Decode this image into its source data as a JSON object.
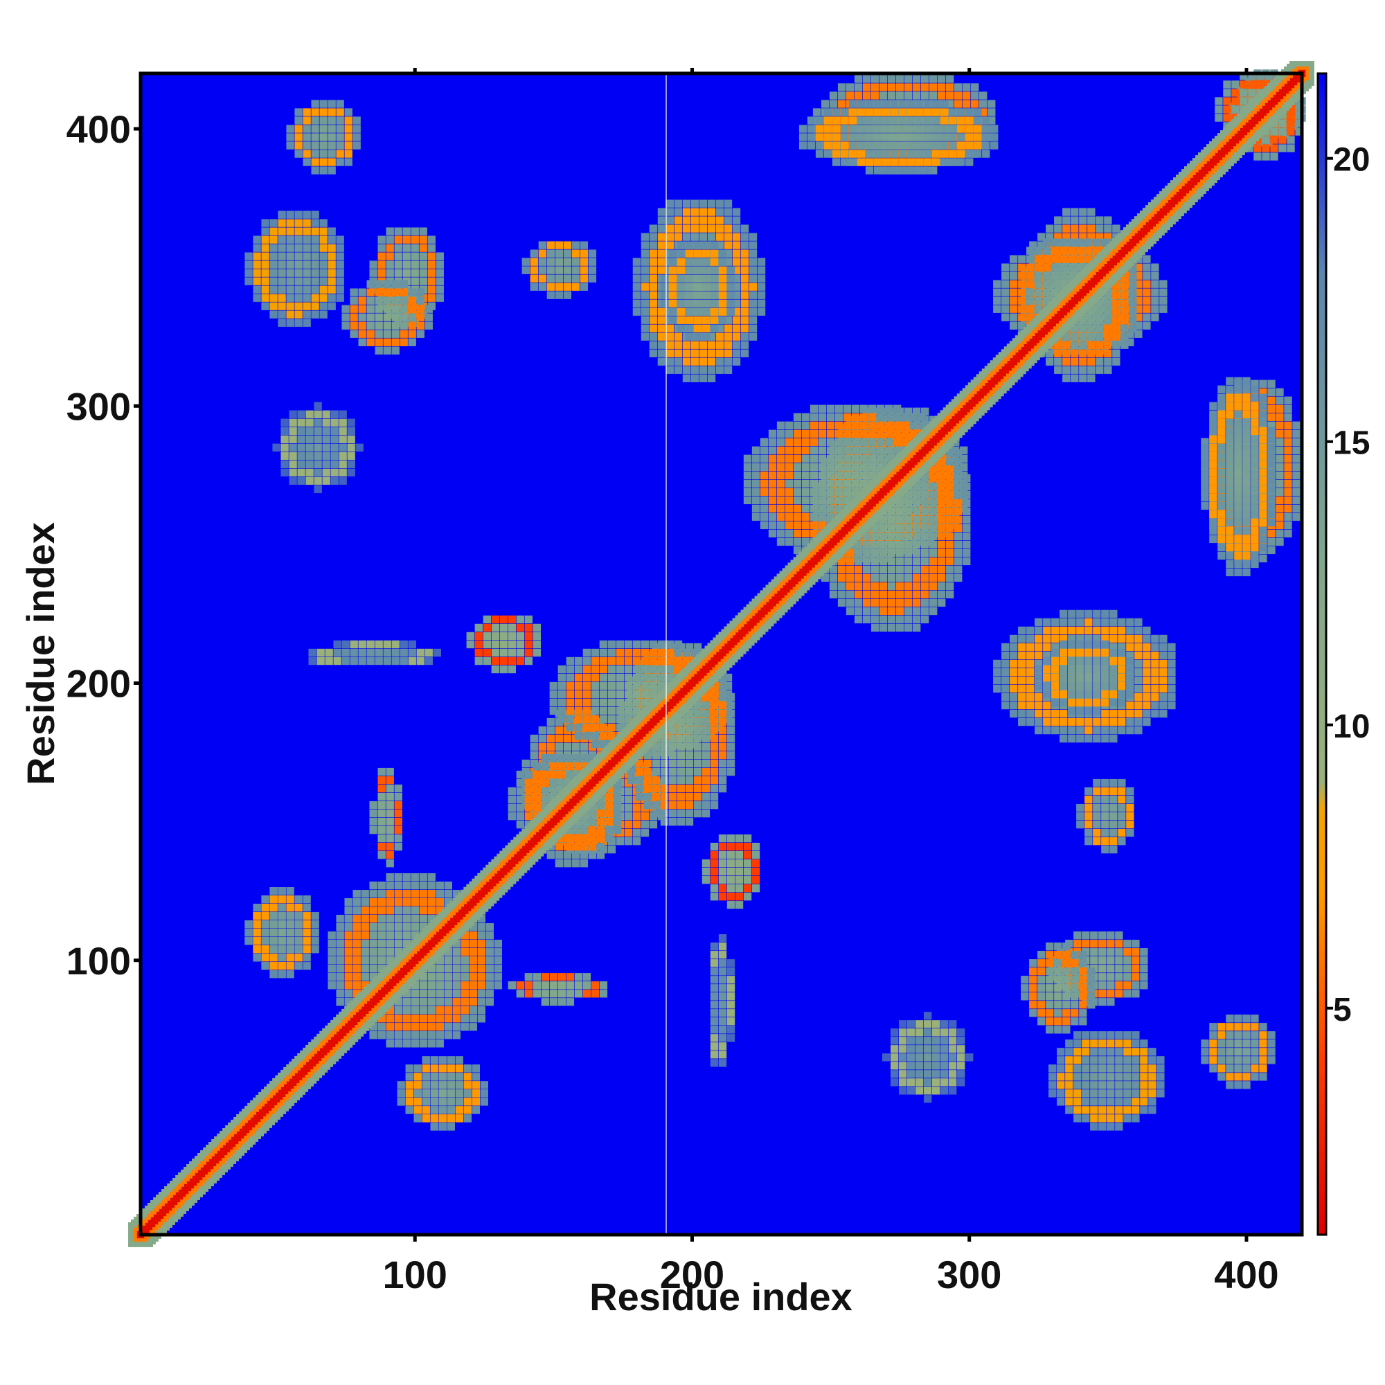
{
  "chart_data": {
    "type": "heatmap",
    "title": "",
    "xlabel": "Residue index",
    "ylabel": "Residue index",
    "xlim": [
      1,
      420
    ],
    "ylim": [
      1,
      420
    ],
    "x_ticks": [
      100,
      200,
      300,
      400
    ],
    "y_ticks": [
      100,
      200,
      300,
      400
    ],
    "x_tick_labels": [
      "100",
      "200",
      "300",
      "400"
    ],
    "y_tick_labels": [
      "100",
      "200",
      "300",
      "400"
    ],
    "colorbar": {
      "range": [
        1,
        21.5
      ],
      "ticks": [
        5,
        10,
        15,
        20
      ],
      "tick_labels": [
        "5",
        "10",
        "15",
        "20"
      ],
      "colors": [
        {
          "stop": 1,
          "color": "#dd0000"
        },
        {
          "stop": 4,
          "color": "#ff3b00"
        },
        {
          "stop": 7,
          "color": "#ff9900"
        },
        {
          "stop": 8.5,
          "color": "#f2a400"
        },
        {
          "stop": 9,
          "color": "#9ab17a"
        },
        {
          "stop": 13,
          "color": "#7fa68e"
        },
        {
          "stop": 18,
          "color": "#5a86b0"
        },
        {
          "stop": 21.5,
          "color": "#0000f5"
        }
      ]
    },
    "background_value": 21.5,
    "diagonal": {
      "from": 1,
      "to": 420,
      "value": 1.5
    },
    "contact_regions": [
      {
        "x": [
          40,
          75
        ],
        "y": [
          330,
          370
        ],
        "value": 11
      },
      {
        "x": [
          85,
          110
        ],
        "y": [
          330,
          365
        ],
        "value": 9
      },
      {
        "x": [
          50,
          80
        ],
        "y": [
          270,
          300
        ],
        "value": 12
      },
      {
        "x": [
          60,
          110
        ],
        "y": [
          205,
          215
        ],
        "value": 12
      },
      {
        "x": [
          85,
          95
        ],
        "y": [
          135,
          170
        ],
        "value": 8
      },
      {
        "x": [
          40,
          60
        ],
        "y": [
          95,
          125
        ],
        "value": 10
      },
      {
        "x": [
          70,
          130
        ],
        "y": [
          70,
          125
        ],
        "value": 9
      },
      {
        "x": [
          95,
          125
        ],
        "y": [
          40,
          65
        ],
        "value": 10
      },
      {
        "x": [
          140,
          175
        ],
        "y": [
          135,
          190
        ],
        "value": 9
      },
      {
        "x": [
          175,
          215
        ],
        "y": [
          150,
          215
        ],
        "value": 9
      },
      {
        "x": [
          205,
          225
        ],
        "y": [
          120,
          145
        ],
        "value": 7
      },
      {
        "x": [
          180,
          225
        ],
        "y": [
          310,
          375
        ],
        "value": 10
      },
      {
        "x": [
          140,
          165
        ],
        "y": [
          340,
          360
        ],
        "value": 10
      },
      {
        "x": [
          245,
          300
        ],
        "y": [
          220,
          300
        ],
        "value": 9
      },
      {
        "x": [
          245,
          310
        ],
        "y": [
          385,
          420
        ],
        "value": 9
      },
      {
        "x": [
          320,
          360
        ],
        "y": [
          310,
          370
        ],
        "value": 9
      },
      {
        "x": [
          325,
          360
        ],
        "y": [
          190,
          215
        ],
        "value": 10
      },
      {
        "x": [
          320,
          345
        ],
        "y": [
          75,
          105
        ],
        "value": 9
      },
      {
        "x": [
          385,
          410
        ],
        "y": [
          240,
          310
        ],
        "value": 10
      },
      {
        "x": [
          385,
          410
        ],
        "y": [
          55,
          80
        ],
        "value": 10
      },
      {
        "x": [
          395,
          420
        ],
        "y": [
          390,
          420
        ],
        "value": 8
      }
    ],
    "grid": false,
    "legend": "colorbar-right"
  }
}
